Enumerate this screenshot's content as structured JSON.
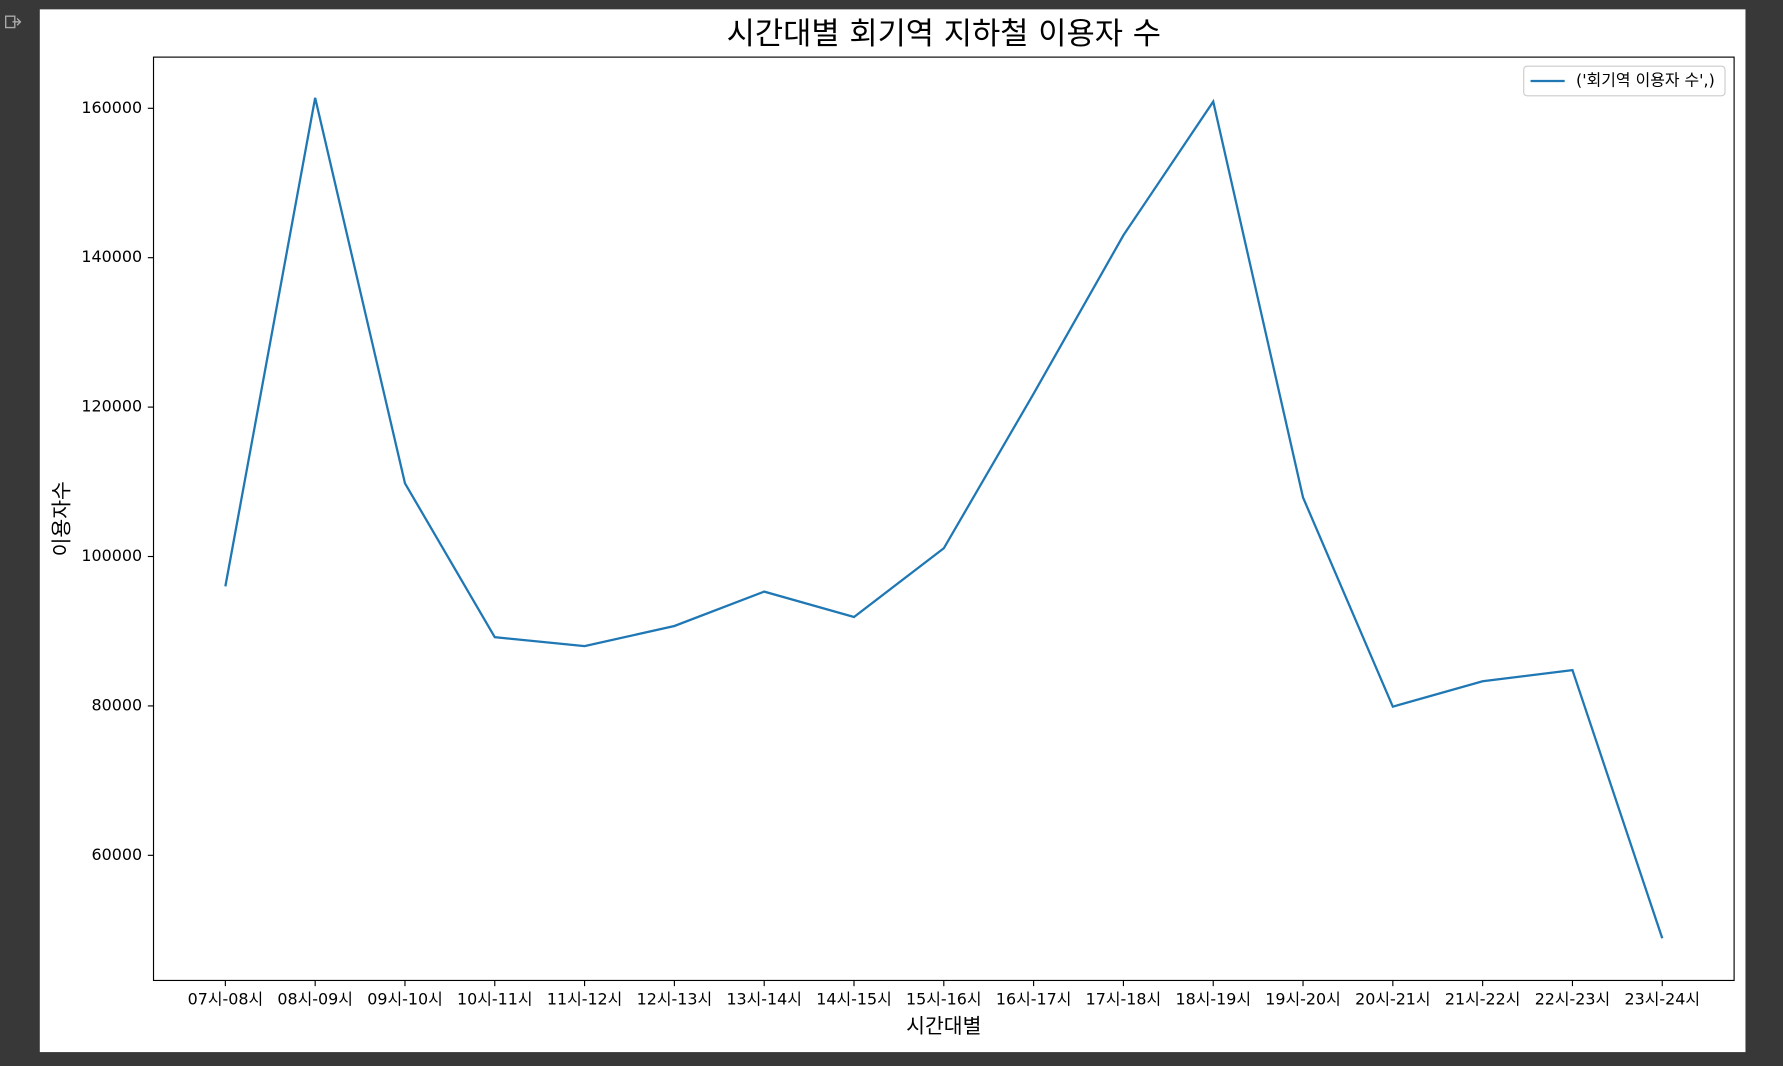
{
  "chart_data": {
    "type": "line",
    "title": "시간대별 회기역 지하철 이용자 수",
    "xlabel": "시간대별",
    "ylabel": "이용자수",
    "categories": [
      "07시-08시",
      "08시-09시",
      "09시-10시",
      "10시-11시",
      "11시-12시",
      "12시-13시",
      "13시-14시",
      "14시-15시",
      "15시-16시",
      "16시-17시",
      "17시-18시",
      "18시-19시",
      "19시-20시",
      "20시-21시",
      "21시-22시",
      "22시-23시",
      "23시-24시"
    ],
    "series": [
      {
        "name": "('회기역 이용자 수',)",
        "color": "#1f77b4",
        "values": [
          96000,
          161400,
          109800,
          89200,
          88000,
          90700,
          95300,
          91900,
          101100,
          121800,
          143000,
          160900,
          107900,
          79900,
          83300,
          84800,
          48900
        ]
      }
    ],
    "ylim": [
      43250,
      166850
    ],
    "yticks": [
      60000,
      80000,
      100000,
      120000,
      140000,
      160000
    ],
    "grid": false,
    "legend": "upper right"
  }
}
